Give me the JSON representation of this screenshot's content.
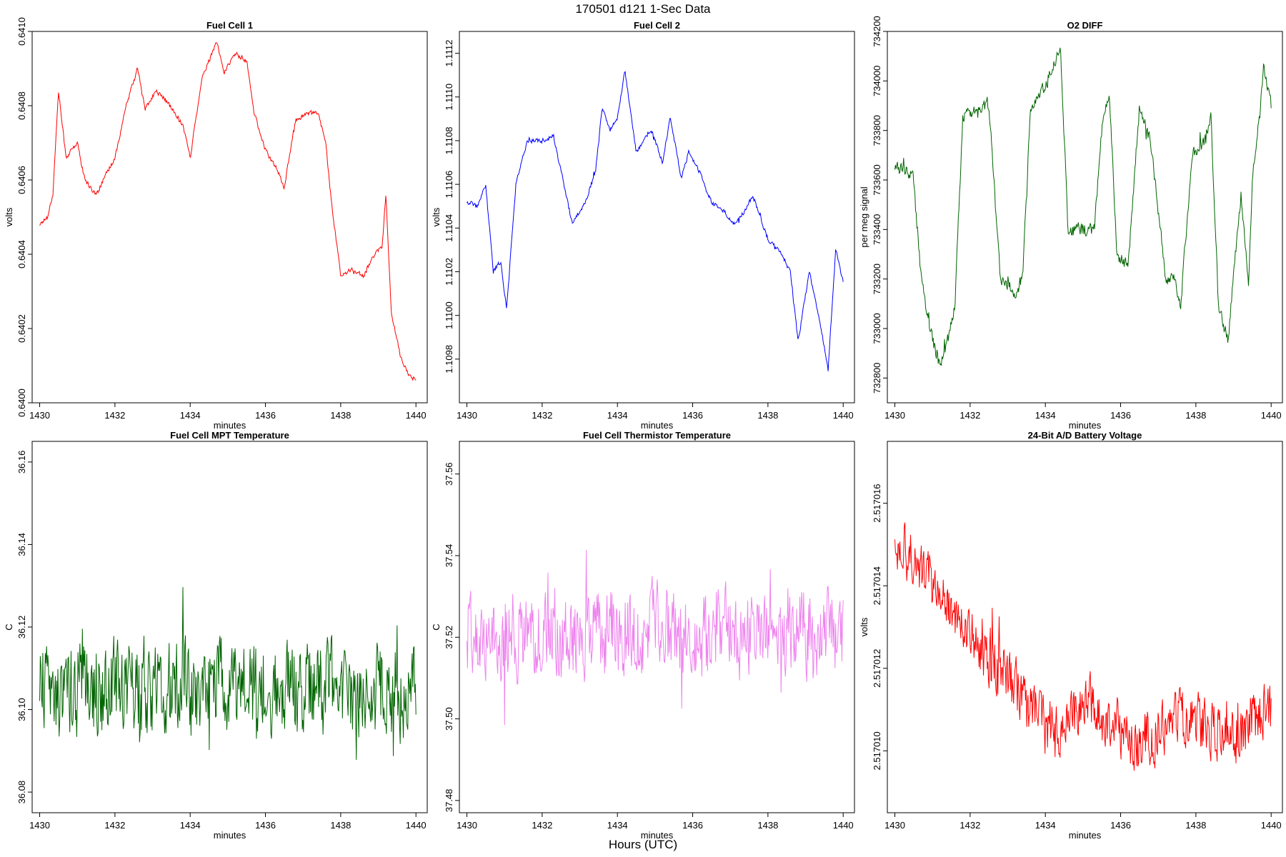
{
  "page": {
    "title": "170501   d121   1-Sec Data",
    "footer_label": "Hours (UTC)"
  },
  "chart_data": [
    {
      "id": "fc1",
      "type": "line",
      "title": "Fuel Cell 1",
      "xlabel": "minutes",
      "ylabel": "volts",
      "xlim": [
        1429.8,
        1440.3
      ],
      "ylim": [
        0.64,
        0.641
      ],
      "xticks": [
        1430,
        1432,
        1434,
        1436,
        1438,
        1440
      ],
      "yticks": [
        0.64,
        0.6402,
        0.6404,
        0.6406,
        0.6408,
        0.641
      ],
      "ytick_labels": [
        "0.6400",
        "0.6402",
        "0.6404",
        "0.6406",
        "0.6408",
        "0.6410"
      ],
      "color": "#ff0000",
      "anchors_x": [
        1430,
        1430.2,
        1430.35,
        1430.5,
        1430.7,
        1431,
        1431.2,
        1431.5,
        1431.7,
        1432,
        1432.3,
        1432.6,
        1432.8,
        1433.1,
        1433.3,
        1433.6,
        1433.8,
        1434,
        1434.3,
        1434.7,
        1434.9,
        1435.2,
        1435.5,
        1435.7,
        1436,
        1436.3,
        1436.5,
        1436.8,
        1437.1,
        1437.4,
        1437.6,
        1437.8,
        1438,
        1438.3,
        1438.6,
        1438.9,
        1439.1,
        1439.2,
        1439.35,
        1439.6,
        1439.8,
        1440
      ],
      "anchors_y": [
        0.64048,
        0.6405,
        0.64056,
        0.64084,
        0.64066,
        0.6407,
        0.6406,
        0.64056,
        0.6406,
        0.64066,
        0.6408,
        0.6409,
        0.64079,
        0.64084,
        0.64082,
        0.64078,
        0.64075,
        0.64066,
        0.64087,
        0.64097,
        0.64089,
        0.64094,
        0.64092,
        0.64078,
        0.64068,
        0.64063,
        0.64058,
        0.64076,
        0.64078,
        0.64078,
        0.6407,
        0.6405,
        0.64034,
        0.64036,
        0.64034,
        0.6404,
        0.64042,
        0.64056,
        0.64024,
        0.64012,
        0.64008,
        0.64006
      ],
      "noise": 7e-06,
      "n_points": 600
    },
    {
      "id": "fc2",
      "type": "line",
      "title": "Fuel Cell 2",
      "xlabel": "minutes",
      "ylabel": "volts",
      "xlim": [
        1429.8,
        1440.3
      ],
      "ylim": [
        1.1096,
        1.1113
      ],
      "xticks": [
        1430,
        1432,
        1434,
        1436,
        1438,
        1440
      ],
      "yticks": [
        1.1098,
        1.11,
        1.1102,
        1.1104,
        1.1106,
        1.1108,
        1.111,
        1.1112
      ],
      "ytick_labels": [
        "1.1098",
        "1.1100",
        "1.1102",
        "1.1104",
        "1.1106",
        "1.1108",
        "1.1110",
        "1.1112"
      ],
      "color": "#0000ff",
      "anchors_x": [
        1430,
        1430.3,
        1430.5,
        1430.7,
        1430.9,
        1431.05,
        1431.3,
        1431.6,
        1432,
        1432.3,
        1432.6,
        1432.8,
        1433.1,
        1433.4,
        1433.6,
        1433.8,
        1434,
        1434.2,
        1434.5,
        1434.7,
        1434.9,
        1435.2,
        1435.4,
        1435.7,
        1435.9,
        1436.2,
        1436.5,
        1436.8,
        1437.1,
        1437.4,
        1437.6,
        1437.8,
        1438,
        1438.3,
        1438.6,
        1438.8,
        1439.1,
        1439.4,
        1439.6,
        1439.8,
        1440
      ],
      "anchors_y": [
        1.11052,
        1.1105,
        1.1106,
        1.1102,
        1.11025,
        1.11003,
        1.1106,
        1.1108,
        1.1108,
        1.11082,
        1.11058,
        1.11042,
        1.1105,
        1.11065,
        1.11095,
        1.11085,
        1.1109,
        1.11112,
        1.11075,
        1.1108,
        1.11085,
        1.1107,
        1.1109,
        1.11063,
        1.11075,
        1.11065,
        1.11052,
        1.11048,
        1.11042,
        1.11048,
        1.11055,
        1.11045,
        1.11035,
        1.1103,
        1.1102,
        1.10988,
        1.1102,
        1.10995,
        1.10975,
        1.1103,
        1.11015
      ],
      "noise": 1.2e-05,
      "n_points": 600
    },
    {
      "id": "o2",
      "type": "line",
      "title": "O2 DIFF",
      "xlabel": "minutes",
      "ylabel": "per meg signal",
      "xlim": [
        1429.8,
        1440.3
      ],
      "ylim": [
        732700,
        734200
      ],
      "xticks": [
        1430,
        1432,
        1434,
        1436,
        1438,
        1440
      ],
      "yticks": [
        732800,
        733000,
        733200,
        733400,
        733600,
        733800,
        734000,
        734200
      ],
      "ytick_labels": [
        "732800",
        "733000",
        "733200",
        "733400",
        "733600",
        "733800",
        "734000",
        "734200"
      ],
      "color": "#006400",
      "anchors_x": [
        1430,
        1430.3,
        1430.5,
        1430.7,
        1431,
        1431.2,
        1431.4,
        1431.6,
        1431.8,
        1432.2,
        1432.5,
        1432.8,
        1433.2,
        1433.4,
        1433.6,
        1433.9,
        1434.2,
        1434.4,
        1434.6,
        1434.9,
        1435.3,
        1435.5,
        1435.7,
        1435.9,
        1436.2,
        1436.5,
        1436.8,
        1437.2,
        1437.4,
        1437.6,
        1437.9,
        1438.2,
        1438.4,
        1438.6,
        1438.85,
        1439,
        1439.2,
        1439.4,
        1439.5,
        1439.7,
        1439.8,
        1440
      ],
      "anchors_y": [
        733650,
        733650,
        733600,
        733200,
        732950,
        732850,
        732950,
        733100,
        733850,
        733900,
        733900,
        733200,
        733150,
        733200,
        733900,
        733950,
        734050,
        734150,
        733400,
        733400,
        733400,
        733800,
        733950,
        733300,
        733250,
        733900,
        733750,
        733200,
        733200,
        733100,
        733700,
        733750,
        733850,
        733100,
        732950,
        733200,
        733550,
        733200,
        733600,
        733900,
        734050,
        733900
      ],
      "noise": 30,
      "n_points": 600
    },
    {
      "id": "mpt",
      "type": "line",
      "title": "Fuel Cell MPT Temperature",
      "xlabel": "minutes",
      "ylabel": "C",
      "xlim": [
        1429.8,
        1440.3
      ],
      "ylim": [
        36.075,
        36.165
      ],
      "xticks": [
        1430,
        1432,
        1434,
        1436,
        1438,
        1440
      ],
      "yticks": [
        36.08,
        36.1,
        36.12,
        36.14,
        36.16
      ],
      "ytick_labels": [
        "36.08",
        "36.10",
        "36.12",
        "36.14",
        "36.16"
      ],
      "color": "#006400",
      "anchors_x": [
        1430,
        1440
      ],
      "anchors_y": [
        36.105,
        36.105
      ],
      "noise": 0.013,
      "n_points": 600
    },
    {
      "id": "therm",
      "type": "line",
      "title": "Fuel Cell Thermistor Temperature",
      "xlabel": "minutes",
      "ylabel": "C",
      "xlim": [
        1429.8,
        1440.3
      ],
      "ylim": [
        37.477,
        37.568
      ],
      "xticks": [
        1430,
        1432,
        1434,
        1436,
        1438,
        1440
      ],
      "yticks": [
        37.48,
        37.5,
        37.52,
        37.54,
        37.56
      ],
      "ytick_labels": [
        "37.48",
        "37.50",
        "37.52",
        "37.54",
        "37.56"
      ],
      "color": "#ee82ee",
      "anchors_x": [
        1430,
        1440
      ],
      "anchors_y": [
        37.521,
        37.521
      ],
      "noise": 0.012,
      "n_points": 600
    },
    {
      "id": "batt",
      "type": "line",
      "title": "24-Bit A/D Battery Voltage",
      "xlabel": "minutes",
      "ylabel": "volts",
      "xlim": [
        1429.8,
        1440.3
      ],
      "ylim": [
        2.5170085,
        2.5170175
      ],
      "xticks": [
        1430,
        1432,
        1434,
        1436,
        1438,
        1440
      ],
      "yticks": [
        2.51701,
        2.517012,
        2.517014,
        2.517016
      ],
      "ytick_labels": [
        "2.517010",
        "2.517012",
        "2.517014",
        "2.517016"
      ],
      "color": "#ff0000",
      "anchors_x": [
        1430,
        1430.5,
        1431,
        1431.5,
        1432,
        1432.5,
        1433,
        1433.5,
        1434,
        1434.5,
        1435,
        1435.5,
        1436,
        1436.5,
        1437,
        1437.5,
        1438,
        1438.5,
        1439,
        1439.5,
        1440
      ],
      "anchors_y": [
        2.5170152,
        2.5170145,
        2.517014,
        2.5170135,
        2.5170128,
        2.5170122,
        2.5170118,
        2.517011,
        2.5170105,
        2.5170108,
        2.5170112,
        2.5170108,
        2.5170105,
        2.5170102,
        2.5170105,
        2.5170108,
        2.5170106,
        2.5170106,
        2.5170103,
        2.5170108,
        2.517011
      ],
      "noise": 8e-07,
      "n_points": 600
    }
  ]
}
